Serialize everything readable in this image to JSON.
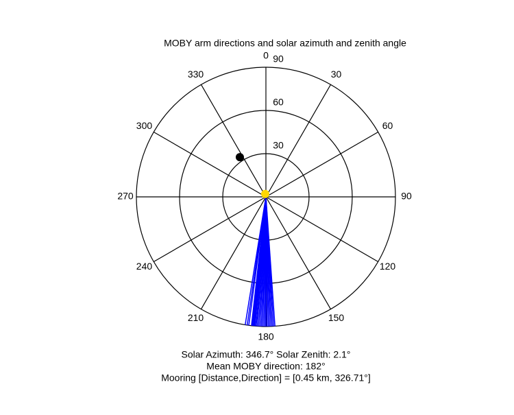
{
  "chart_data": {
    "type": "polar",
    "title": "MOBY arm directions and solar azimuth and zenith angle",
    "theta_ticks": [
      0,
      30,
      60,
      90,
      120,
      150,
      180,
      210,
      240,
      270,
      300,
      330
    ],
    "rlim": [
      0,
      90
    ],
    "rticks": [
      30,
      60,
      90
    ],
    "arm_directions": {
      "color": "#0000ff",
      "values": [
        189.2,
        188.3,
        187.6,
        186.4,
        186.0,
        185.6,
        185.2,
        184.8,
        184.3,
        183.8,
        183.2,
        182.6,
        182.0,
        181.4,
        180.8,
        180.2,
        179.6,
        179.0,
        178.4,
        177.8,
        177.2,
        176.6,
        176.0
      ]
    },
    "points": [
      {
        "theta": 326.71,
        "r": 33,
        "color": "#000000"
      },
      {
        "theta": 346.7,
        "r": 2.1,
        "color": "#ffd700"
      }
    ],
    "annotations": [
      "Solar Azimuth: 346.7°   Solar Zenith: 2.1°",
      "Mean MOBY direction: 182°",
      "Mooring [Distance,Direction] = [0.45 km, 326.71°]"
    ]
  }
}
